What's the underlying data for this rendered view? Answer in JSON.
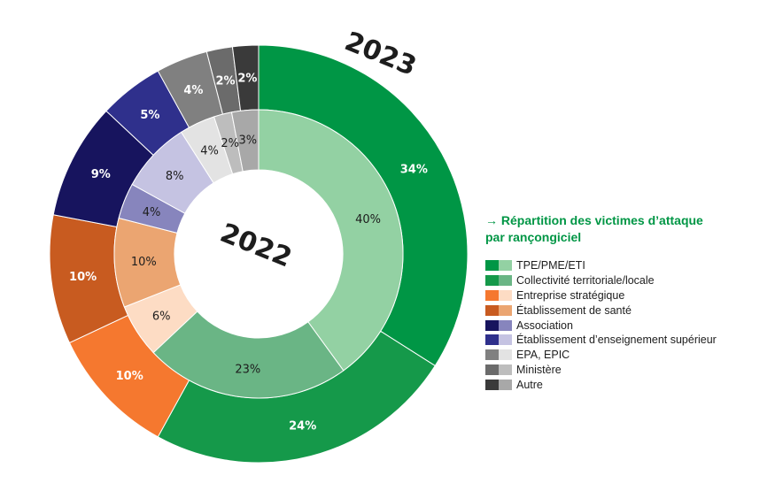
{
  "chart_data": {
    "type": "pie",
    "variant": "concentric-donut",
    "title": "→ Répartition des victimes d’attaque par rançongiciel",
    "categories": [
      "TPE/PME/ETI",
      "Collectivité territoriale/locale",
      "Entreprise stratégique",
      "Établissement de santé",
      "Association",
      "Établissement d’enseignement supérieur",
      "EPA, EPIC",
      "Ministère",
      "Autre"
    ],
    "series": [
      {
        "name": "2023",
        "ring": "outer",
        "values": [
          34,
          24,
          10,
          10,
          9,
          5,
          4,
          2,
          2
        ],
        "labels": [
          "34%",
          "24%",
          "10%",
          "10%",
          "9%",
          "5%",
          "4%",
          "2%",
          "2%"
        ]
      },
      {
        "name": "2022",
        "ring": "inner",
        "values": [
          40,
          23,
          6,
          10,
          4,
          8,
          4,
          2,
          3
        ],
        "labels": [
          "40%",
          "23%",
          "6%",
          "10%",
          "4%",
          "8%",
          "4%",
          "2%",
          "3%"
        ]
      }
    ],
    "colors": {
      "outer": [
        "#009645",
        "#15994a",
        "#f5782f",
        "#c85b20",
        "#17145e",
        "#2f308c",
        "#808080",
        "#6b6b6b",
        "#3a3a3a"
      ],
      "inner": [
        "#93d1a3",
        "#6ab585",
        "#fddcc4",
        "#eba571",
        "#8785bd",
        "#c5c3e2",
        "#e3e3e3",
        "#bdbdbd",
        "#a8a8a8"
      ]
    },
    "legend_placement": "right"
  }
}
